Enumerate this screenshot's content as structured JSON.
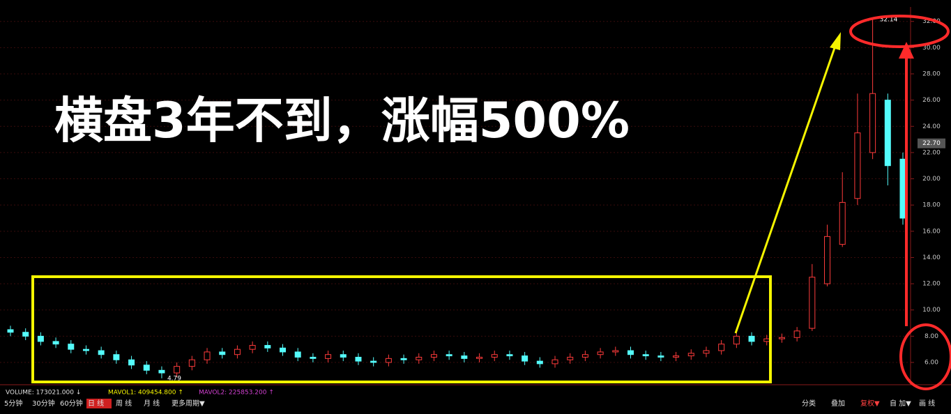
{
  "chart_data": {
    "type": "candlestick",
    "title": "横盘3年不到，涨幅500%",
    "open": [
      8.5,
      8.3,
      8.0,
      7.6,
      7.4,
      7.0,
      6.9,
      6.6,
      6.2,
      5.8,
      5.4,
      5.2,
      5.7,
      6.2,
      6.8,
      6.6,
      7.0,
      7.3,
      7.1,
      6.8,
      6.4,
      6.3,
      6.6,
      6.4,
      6.1,
      6.0,
      6.3,
      6.2,
      6.4,
      6.6,
      6.5,
      6.3,
      6.4,
      6.6,
      6.5,
      6.1,
      5.9,
      6.2,
      6.4,
      6.6,
      6.8,
      6.9,
      6.6,
      6.5,
      6.4,
      6.5,
      6.7,
      6.9,
      7.4,
      8.0,
      7.6,
      7.8,
      7.9,
      8.6,
      12.0,
      15.0,
      18.5,
      22.0,
      26.0,
      21.5
    ],
    "high": [
      8.8,
      8.6,
      8.3,
      7.9,
      7.7,
      7.3,
      7.2,
      6.9,
      6.5,
      6.1,
      5.7,
      6.0,
      6.5,
      7.1,
      7.1,
      7.3,
      7.6,
      7.6,
      7.4,
      7.1,
      6.7,
      6.9,
      6.9,
      6.7,
      6.4,
      6.6,
      6.6,
      6.7,
      6.9,
      6.9,
      6.8,
      6.7,
      6.9,
      6.9,
      6.8,
      6.4,
      6.5,
      6.7,
      6.9,
      7.1,
      7.2,
      7.2,
      6.9,
      6.8,
      6.8,
      7.0,
      7.2,
      7.7,
      8.6,
      8.3,
      8.1,
      8.2,
      8.7,
      13.5,
      16.5,
      20.5,
      26.5,
      32.14,
      26.5,
      22.0
    ],
    "low": [
      8.0,
      7.7,
      7.3,
      7.1,
      6.7,
      6.6,
      6.3,
      5.9,
      5.5,
      5.1,
      4.79,
      4.9,
      5.4,
      5.9,
      6.3,
      6.3,
      6.7,
      6.8,
      6.5,
      6.1,
      6.0,
      6.0,
      6.1,
      5.8,
      5.7,
      5.7,
      5.9,
      5.9,
      6.1,
      6.2,
      6.0,
      6.0,
      6.1,
      6.2,
      5.8,
      5.6,
      5.6,
      5.9,
      6.1,
      6.3,
      6.5,
      6.3,
      6.2,
      6.1,
      6.1,
      6.2,
      6.4,
      6.6,
      7.1,
      7.3,
      7.3,
      7.5,
      7.6,
      8.4,
      11.8,
      14.8,
      18.0,
      21.5,
      19.5,
      16.5
    ],
    "close": [
      8.3,
      8.0,
      7.6,
      7.4,
      7.0,
      6.9,
      6.6,
      6.2,
      5.8,
      5.4,
      5.2,
      5.7,
      6.2,
      6.8,
      6.6,
      7.0,
      7.3,
      7.1,
      6.8,
      6.4,
      6.3,
      6.6,
      6.4,
      6.1,
      6.0,
      6.3,
      6.2,
      6.4,
      6.6,
      6.5,
      6.3,
      6.4,
      6.6,
      6.5,
      6.1,
      5.9,
      6.2,
      6.4,
      6.6,
      6.8,
      6.9,
      6.6,
      6.5,
      6.4,
      6.5,
      6.7,
      6.9,
      7.4,
      8.0,
      7.6,
      7.8,
      7.9,
      8.4,
      12.5,
      15.6,
      18.2,
      23.5,
      26.5,
      21.0,
      17.0
    ],
    "up_color": "#ff3b3b",
    "down_color": "#54fcfc",
    "ylim": [
      4.3,
      33.1
    ],
    "yticks": [
      {
        "value": 6,
        "label": "6.00"
      },
      {
        "value": 8,
        "label": "8.00"
      },
      {
        "value": 10,
        "label": "10.00"
      },
      {
        "value": 12,
        "label": "12.00"
      },
      {
        "value": 14,
        "label": "14.00"
      },
      {
        "value": 16,
        "label": "16.00"
      },
      {
        "value": 18,
        "label": "18.00"
      },
      {
        "value": 20,
        "label": "20.00"
      },
      {
        "value": 22,
        "label": "22.00"
      },
      {
        "value": 24,
        "label": "24.00"
      },
      {
        "value": 26,
        "label": "26.00"
      },
      {
        "value": 28,
        "label": "28.00"
      },
      {
        "value": 30,
        "label": "30.00"
      },
      {
        "value": 32,
        "label": "32.00"
      }
    ],
    "grid": true,
    "max_label": 32.14,
    "min_label": 4.79,
    "last_price": {
      "value": 22.7,
      "label": "22.70"
    }
  },
  "status_bar": {
    "volume": "VOLUME: 173021.000 ↓",
    "mavol1": "MAVOL1: 409454.800 ↑",
    "mavol2": "MAVOL2: 225853.200 ↑",
    "periods": [
      "5分钟",
      "30分钟",
      "60分钟",
      "日 线",
      "周 线",
      "月 线",
      "更多周期▼"
    ],
    "right_tools": [
      "分类",
      "叠加",
      "复权▼",
      "自 加▼",
      "画 线"
    ]
  }
}
